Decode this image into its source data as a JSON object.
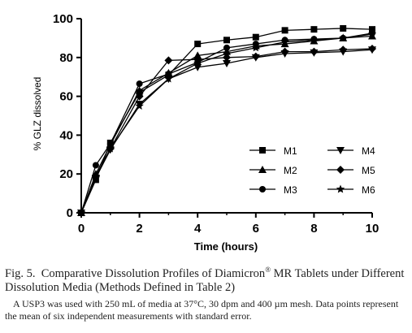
{
  "chart_data": {
    "type": "line",
    "title": "",
    "xlabel": "Time (hours)",
    "ylabel": "% GLZ dissolved",
    "xlim": [
      0,
      10
    ],
    "ylim": [
      0,
      100
    ],
    "xticks": [
      0,
      2,
      4,
      6,
      8,
      10
    ],
    "yticks": [
      0,
      20,
      40,
      60,
      80,
      100
    ],
    "grid": false,
    "legend_position": "lower-right",
    "series": [
      {
        "name": "M1",
        "marker": "square",
        "x": [
          0,
          0.5,
          1,
          2,
          3,
          4,
          5,
          6,
          7,
          8,
          9,
          10
        ],
        "y": [
          0,
          17,
          36,
          62,
          71,
          87,
          89,
          90.5,
          94,
          94.5,
          95,
          94.5
        ]
      },
      {
        "name": "M2",
        "marker": "triangle-up",
        "x": [
          0,
          0.5,
          1,
          2,
          3,
          4,
          5,
          6,
          7,
          8,
          9,
          10
        ],
        "y": [
          0,
          20,
          35,
          63,
          72,
          81,
          83,
          86,
          87,
          88.5,
          90,
          91
        ]
      },
      {
        "name": "M3",
        "marker": "circle",
        "x": [
          0,
          0.5,
          1,
          2,
          3,
          4,
          5,
          6,
          7,
          8,
          9,
          10
        ],
        "y": [
          0,
          24.5,
          35.5,
          66.5,
          71.5,
          77.5,
          85,
          87,
          89,
          89.5,
          90,
          92.5
        ]
      },
      {
        "name": "M4",
        "marker": "triangle-down",
        "x": [
          0,
          0.5,
          1,
          2,
          3,
          4,
          5,
          6,
          7,
          8,
          9,
          10
        ],
        "y": [
          0,
          18,
          32.5,
          56,
          69,
          75,
          77,
          80,
          82,
          82.5,
          83,
          84
        ]
      },
      {
        "name": "M5",
        "marker": "diamond",
        "x": [
          0,
          0.5,
          1,
          2,
          3,
          4,
          5,
          6,
          7,
          8,
          9,
          10
        ],
        "y": [
          0,
          19,
          33,
          60,
          78.5,
          79,
          80,
          80.5,
          83,
          83,
          84,
          84.5
        ]
      },
      {
        "name": "M6",
        "marker": "star",
        "x": [
          0,
          0.5,
          1,
          2,
          3,
          4,
          5,
          6,
          7,
          8,
          9,
          10
        ],
        "y": [
          0,
          18.5,
          33,
          55,
          69,
          77,
          82,
          85,
          88,
          89,
          90,
          92
        ]
      }
    ]
  },
  "caption": {
    "fig_label": "Fig. 5.",
    "text_before_sup": "Comparative Dissolution Profiles of Diamicron",
    "sup": "®",
    "text_after_sup": " MR Tablets under Different Dissolution Media (Methods Defined in Table 2)",
    "note": "A USP3 was used with 250 mL of media at 37°C, 30 dpm and 400 µm mesh. Data points represent the mean of six independent measurements with standard error."
  }
}
